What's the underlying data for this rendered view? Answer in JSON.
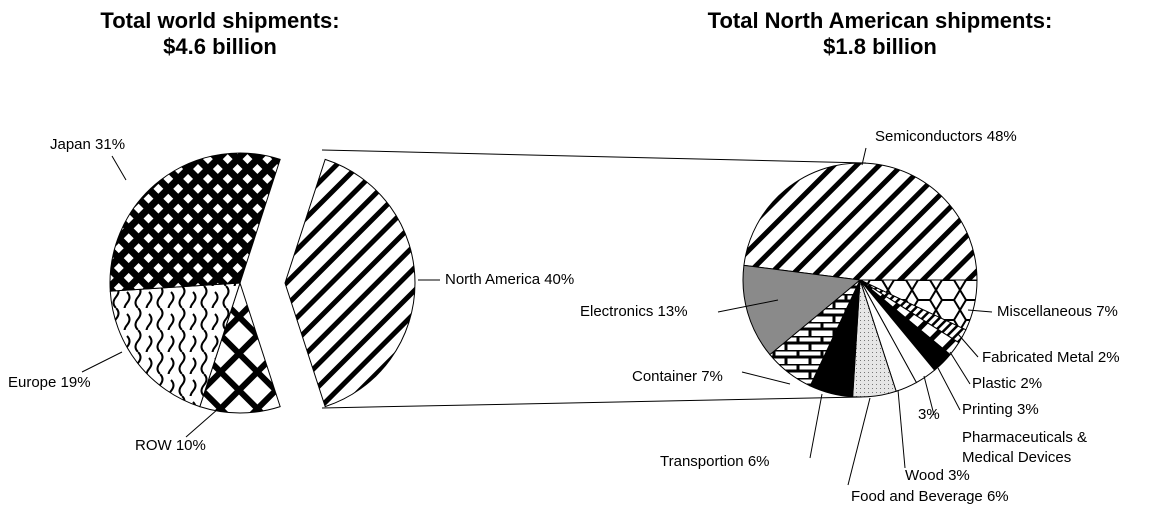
{
  "chart_data": [
    {
      "type": "pie",
      "title": "Total world shipments:",
      "subtitle": "$4.6 billion",
      "categories": [
        "North America",
        "ROW",
        "Europe",
        "Japan"
      ],
      "values": [
        40,
        10,
        19,
        31
      ],
      "value_labels": [
        "40%",
        "10%",
        "19%",
        "31%"
      ]
    },
    {
      "type": "pie",
      "title": "Total North American shipments:",
      "subtitle": "$1.8 billion",
      "categories": [
        "Semiconductors",
        "Miscellaneous",
        "Fabricated Metal",
        "Plastic",
        "Printing",
        "Pharmaceuticals & Medical Devices",
        "Wood",
        "Food and Beverage",
        "Transportion",
        "Container",
        "Electronics"
      ],
      "values": [
        48,
        7,
        2,
        2,
        3,
        3,
        3,
        6,
        6,
        7,
        13
      ],
      "value_labels": [
        "48%",
        "7%",
        "2%",
        "2%",
        "3%",
        "3%",
        "3%",
        "6%",
        "6%",
        "7%",
        "13%"
      ]
    }
  ]
}
